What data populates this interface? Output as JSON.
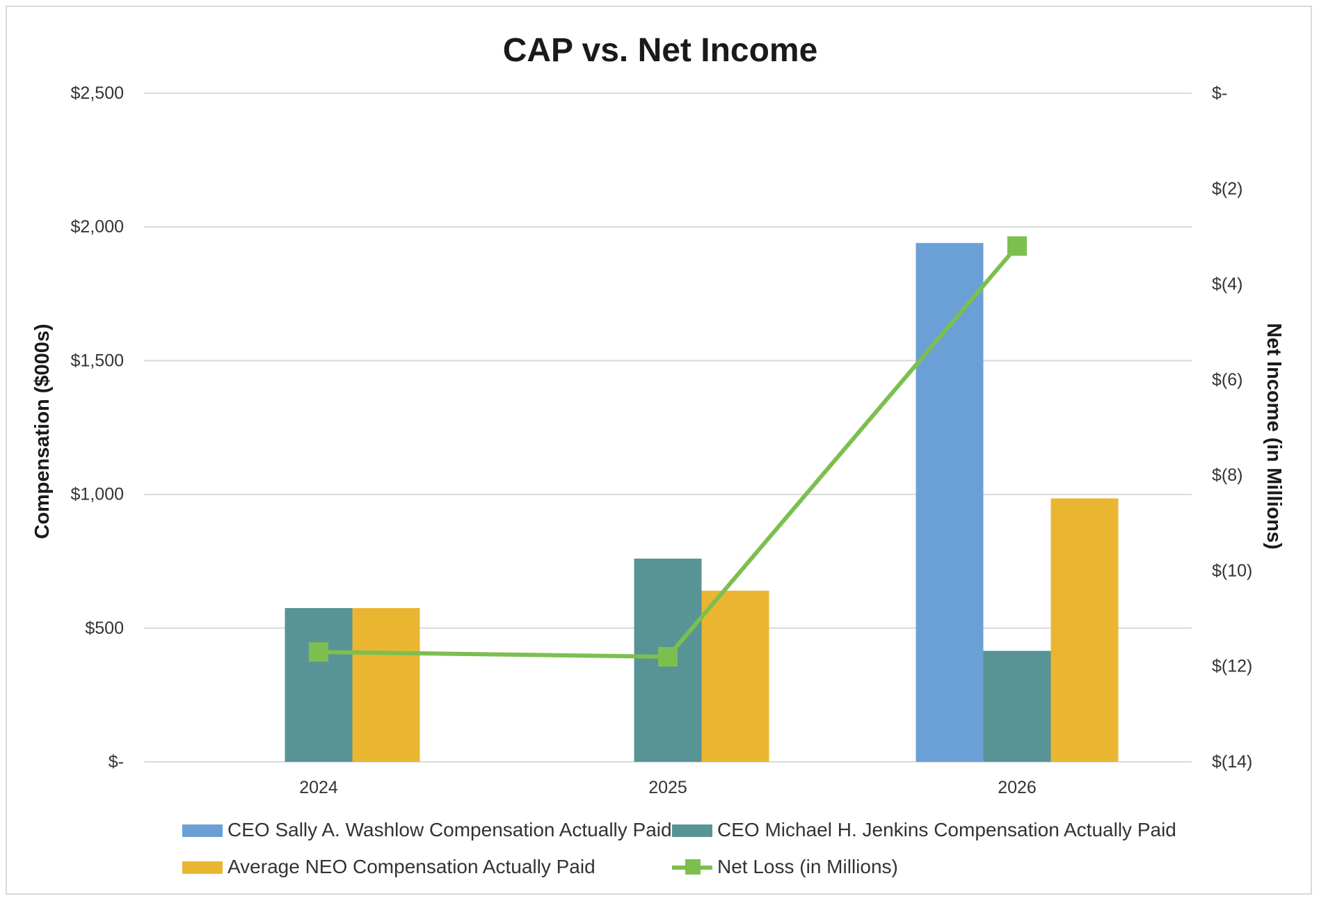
{
  "chart_data": {
    "type": "bar",
    "title": "CAP vs. Net Income",
    "categories": [
      "2024",
      "2025",
      "2026"
    ],
    "ylabel": "Compensation ($000s)",
    "y2label": "Net Income (in Millions)",
    "ylim": [
      0,
      2500
    ],
    "y2lim": [
      -14,
      0
    ],
    "grid": true,
    "legend_position": "bottom",
    "y_ticks": [
      {
        "value": 0,
        "label": "$-"
      },
      {
        "value": 500,
        "label": "$500"
      },
      {
        "value": 1000,
        "label": "$1,000"
      },
      {
        "value": 1500,
        "label": "$1,500"
      },
      {
        "value": 2000,
        "label": "$2,000"
      },
      {
        "value": 2500,
        "label": "$2,500"
      }
    ],
    "y2_ticks": [
      {
        "value": 0,
        "label": "$-"
      },
      {
        "value": -2,
        "label": "$(2)"
      },
      {
        "value": -4,
        "label": "$(4)"
      },
      {
        "value": -6,
        "label": "$(6)"
      },
      {
        "value": -8,
        "label": "$(8)"
      },
      {
        "value": -10,
        "label": "$(10)"
      },
      {
        "value": -12,
        "label": "$(12)"
      },
      {
        "value": -14,
        "label": "$(14)"
      }
    ],
    "series": [
      {
        "name": "CEO Sally A. Washlow Compensation Actually Paid",
        "type": "bar",
        "color": "#6aa0d6",
        "values": [
          null,
          null,
          1940
        ]
      },
      {
        "name": "CEO Michael H. Jenkins Compensation Actually Paid",
        "type": "bar",
        "color": "#589496",
        "values": [
          575,
          760,
          415
        ]
      },
      {
        "name": "Average NEO Compensation Actually Paid",
        "type": "bar",
        "color": "#eab631",
        "values": [
          575,
          640,
          985
        ]
      },
      {
        "name": "Net Loss (in Millions)",
        "type": "line",
        "axis": "right",
        "color": "#7dbf4f",
        "values": [
          -11.7,
          -11.8,
          -3.2
        ]
      }
    ]
  }
}
